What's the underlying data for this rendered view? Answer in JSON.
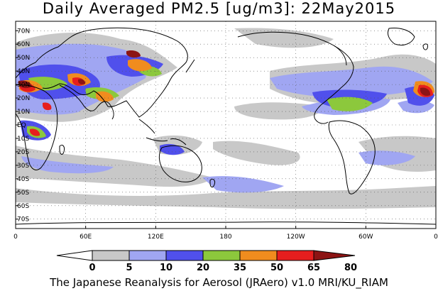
{
  "title": "Daily Averaged PM2.5 [ug/m3]: 22May2015",
  "footer": "The Japanese Reanalysis for Aerosol (JRAero) v1.0 MRI/KU_RIAM",
  "map": {
    "lat_labels": [
      "70N",
      "60N",
      "50N",
      "40N",
      "30N",
      "20N",
      "10N",
      "EQ",
      "10S",
      "20S",
      "30S",
      "40S",
      "50S",
      "60S",
      "70S"
    ],
    "lon_labels": [
      "0",
      "60E",
      "120E",
      "180",
      "120W",
      "60W",
      "0"
    ],
    "background": "#ffffff",
    "coast_color": "#000000",
    "grid_style": "dotted"
  },
  "colorbar": {
    "levels": [
      "0",
      "5",
      "10",
      "20",
      "35",
      "50",
      "65",
      "80"
    ],
    "colors": [
      "#ffffff",
      "#c8c8c8",
      "#a0a6f2",
      "#5050ec",
      "#8cc83c",
      "#f08c1e",
      "#e61e1e",
      "#8c1414"
    ]
  }
}
